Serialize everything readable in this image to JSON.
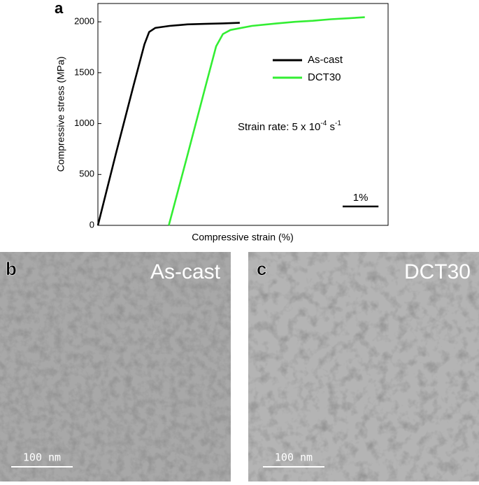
{
  "chart_data": {
    "type": "line",
    "panel_label": "a",
    "xlabel": "Compressive strain (%)",
    "ylabel": "Compressive stress (MPa)",
    "xlim": [
      0,
      8.1
    ],
    "ylim": [
      0,
      2180
    ],
    "yticks": [
      0,
      500,
      1000,
      1500,
      2000
    ],
    "series": [
      {
        "name": "As-cast",
        "color": "#000000",
        "x": [
          0,
          0.5,
          1.0,
          1.3,
          1.43,
          1.6,
          2.0,
          2.5,
          3.0,
          3.5,
          3.96
        ],
        "values": [
          0,
          700,
          1380,
          1780,
          1900,
          1940,
          1960,
          1975,
          1980,
          1985,
          1990
        ]
      },
      {
        "name": "DCT30",
        "color": "#33ee33",
        "x": [
          1.98,
          2.5,
          3.0,
          3.3,
          3.49,
          3.7,
          4.3,
          5.0,
          5.5,
          6.0,
          6.5,
          7.0,
          7.45
        ],
        "values": [
          0,
          690,
          1360,
          1760,
          1880,
          1920,
          1960,
          1985,
          2000,
          2010,
          2025,
          2035,
          2045
        ]
      }
    ],
    "annotation": {
      "text": "Strain rate: 5 x 10",
      "exp1": "-4",
      "mid": " s",
      "exp2": "-1"
    },
    "scale_bar": {
      "value": 1,
      "label": "1%"
    }
  },
  "images": [
    {
      "label": "b",
      "title": "As-cast",
      "scale": "100 nm"
    },
    {
      "label": "c",
      "title": "DCT30",
      "scale": "100 nm"
    }
  ]
}
